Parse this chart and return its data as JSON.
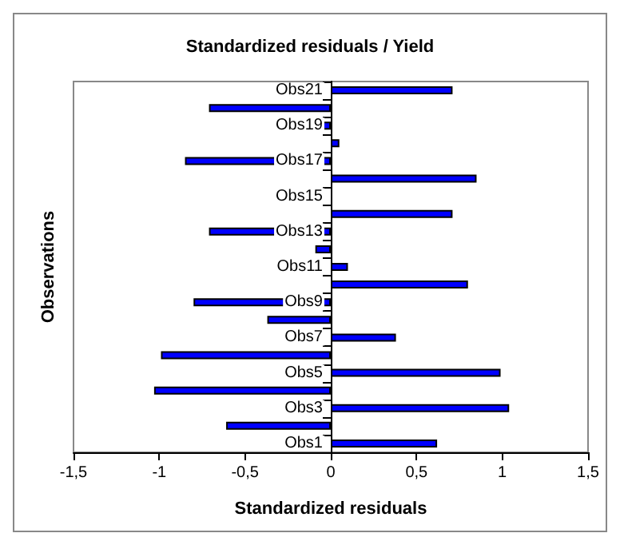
{
  "chart_data": {
    "type": "bar",
    "orientation": "horizontal",
    "title": "Standardized residuals / Yield",
    "xlabel": "Standardized residuals",
    "ylabel": "Observations",
    "categories": [
      "Obs21",
      null,
      "Obs19",
      null,
      "Obs17",
      null,
      "Obs15",
      null,
      "Obs13",
      null,
      "Obs11",
      null,
      "Obs9",
      null,
      "Obs7",
      null,
      "Obs5",
      null,
      "Obs3",
      null,
      "Obs1"
    ],
    "values": [
      0.71,
      -0.71,
      -0.05,
      0.05,
      -0.85,
      0.85,
      0,
      0.71,
      -0.71,
      -0.09,
      0.1,
      0.8,
      -0.8,
      -0.37,
      0.38,
      -0.99,
      0.99,
      -1.03,
      1.04,
      -0.61,
      0.62
    ],
    "color": "#0000ff",
    "xlim": [
      -1.5,
      1.5
    ],
    "xticks": [
      {
        "value": -1.5,
        "label": "-1,5"
      },
      -1,
      {
        "value": -0.5,
        "label": "-0,5"
      },
      0,
      {
        "value": 0.5,
        "label": "0,5"
      },
      1,
      {
        "value": 1.5,
        "label": "1,5"
      }
    ],
    "grid": false
  }
}
